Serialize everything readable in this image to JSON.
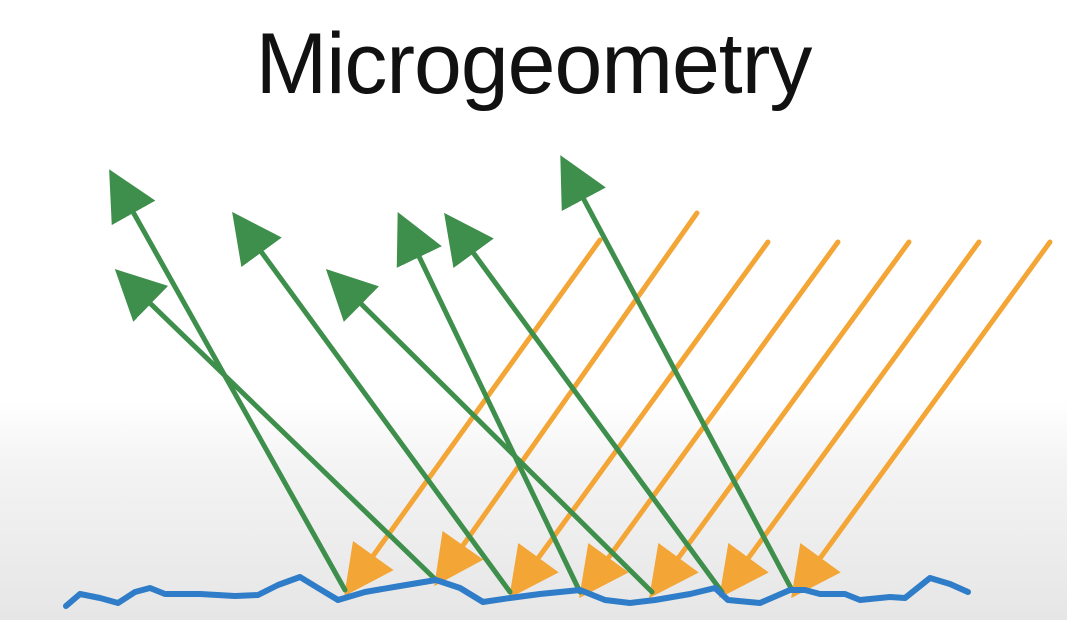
{
  "slide": {
    "title": "Microgeometry"
  },
  "colors": {
    "incident_ray": "#f3a536",
    "reflected_ray": "#3e8e4c",
    "surface": "#2f7cc8",
    "title_text": "#111111"
  },
  "icons": {
    "incident": "arrow-icon",
    "reflected": "arrow-icon"
  }
}
